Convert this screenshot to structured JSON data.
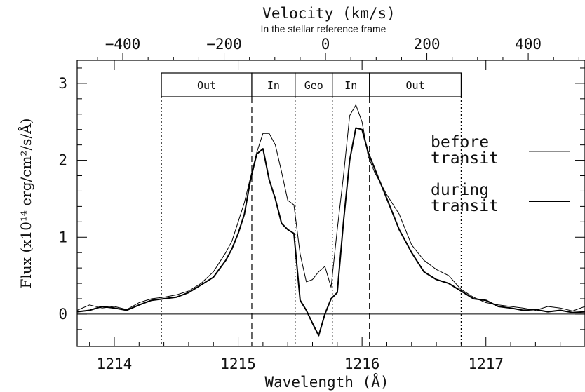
{
  "chart_data": {
    "type": "line",
    "title": "Velocity (km/s)",
    "subtitle": "In the stellar reference frame",
    "xlabel": "Wavelength (Å)",
    "ylabel": "Flux (x10¹⁴ erg/cm²/s/Å)",
    "xlim": [
      1213.7,
      1217.8
    ],
    "ylim": [
      -0.42,
      3.3
    ],
    "top_xlim": [
      -490,
      512
    ],
    "x_ticks": [
      1214,
      1215,
      1216,
      1217
    ],
    "x_tick_labels": [
      "1214",
      "1215",
      "1216",
      "1217"
    ],
    "y_ticks": [
      0,
      1,
      2,
      3
    ],
    "y_tick_labels": [
      "0",
      "1",
      "2",
      "3"
    ],
    "top_ticks": [
      -400,
      -200,
      0,
      200,
      400
    ],
    "top_tick_labels": [
      "−400",
      "−200",
      "0",
      "200",
      "400"
    ],
    "grid": false,
    "legend_position": "right",
    "regions": [
      {
        "label": "Out",
        "x0": 1214.38,
        "x1": 1215.11,
        "left_style": "dotted"
      },
      {
        "label": "In",
        "x0": 1215.11,
        "x1": 1215.46,
        "left_style": "dashed"
      },
      {
        "label": "Geo",
        "x0": 1215.46,
        "x1": 1215.76,
        "left_style": "dotted"
      },
      {
        "label": "In",
        "x0": 1215.76,
        "x1": 1216.06,
        "left_style": "dotted"
      },
      {
        "label": "Out",
        "x0": 1216.06,
        "x1": 1216.8,
        "left_style": "dashed",
        "right_style": "dotted"
      }
    ],
    "series": [
      {
        "name": "before transit",
        "line": "thin",
        "x": [
          1213.7,
          1213.8,
          1213.9,
          1214.0,
          1214.1,
          1214.2,
          1214.3,
          1214.4,
          1214.5,
          1214.6,
          1214.7,
          1214.8,
          1214.9,
          1214.95,
          1215.0,
          1215.05,
          1215.1,
          1215.15,
          1215.2,
          1215.25,
          1215.3,
          1215.35,
          1215.4,
          1215.45,
          1215.5,
          1215.55,
          1215.6,
          1215.65,
          1215.7,
          1215.75,
          1215.8,
          1215.85,
          1215.9,
          1215.95,
          1216.0,
          1216.05,
          1216.1,
          1216.2,
          1216.3,
          1216.4,
          1216.5,
          1216.6,
          1216.7,
          1216.8,
          1216.9,
          1217.0,
          1217.1,
          1217.2,
          1217.3,
          1217.4,
          1217.5,
          1217.6,
          1217.7,
          1217.8
        ],
        "y": [
          0.05,
          0.12,
          0.08,
          0.1,
          0.06,
          0.15,
          0.2,
          0.22,
          0.25,
          0.3,
          0.4,
          0.55,
          0.8,
          0.95,
          1.2,
          1.45,
          1.78,
          2.1,
          2.35,
          2.35,
          2.2,
          1.85,
          1.48,
          1.42,
          0.78,
          0.42,
          0.45,
          0.55,
          0.62,
          0.35,
          1.1,
          1.8,
          2.58,
          2.72,
          2.5,
          2.05,
          1.85,
          1.55,
          1.3,
          0.9,
          0.7,
          0.58,
          0.5,
          0.32,
          0.22,
          0.15,
          0.12,
          0.1,
          0.08,
          0.05,
          0.1,
          0.08,
          0.04,
          0.1
        ]
      },
      {
        "name": "during transit",
        "line": "thick",
        "x": [
          1213.7,
          1213.8,
          1213.9,
          1214.0,
          1214.1,
          1214.2,
          1214.3,
          1214.4,
          1214.5,
          1214.6,
          1214.7,
          1214.8,
          1214.9,
          1214.95,
          1215.0,
          1215.05,
          1215.1,
          1215.15,
          1215.2,
          1215.25,
          1215.3,
          1215.35,
          1215.4,
          1215.45,
          1215.5,
          1215.55,
          1215.6,
          1215.65,
          1215.7,
          1215.75,
          1215.8,
          1215.85,
          1215.9,
          1215.95,
          1216.0,
          1216.05,
          1216.1,
          1216.2,
          1216.3,
          1216.4,
          1216.5,
          1216.6,
          1216.7,
          1216.8,
          1216.9,
          1217.0,
          1217.1,
          1217.2,
          1217.3,
          1217.4,
          1217.5,
          1217.6,
          1217.7,
          1217.8
        ],
        "y": [
          0.03,
          0.05,
          0.1,
          0.08,
          0.05,
          0.12,
          0.18,
          0.2,
          0.22,
          0.28,
          0.38,
          0.48,
          0.7,
          0.85,
          1.05,
          1.3,
          1.75,
          2.08,
          2.15,
          1.75,
          1.5,
          1.18,
          1.1,
          1.05,
          0.18,
          0.05,
          -0.12,
          -0.28,
          0.0,
          0.2,
          0.28,
          1.2,
          2.0,
          2.42,
          2.4,
          2.1,
          1.9,
          1.5,
          1.1,
          0.8,
          0.55,
          0.45,
          0.4,
          0.3,
          0.2,
          0.18,
          0.1,
          0.08,
          0.05,
          0.06,
          0.03,
          0.05,
          0.02,
          0.03
        ]
      }
    ]
  }
}
